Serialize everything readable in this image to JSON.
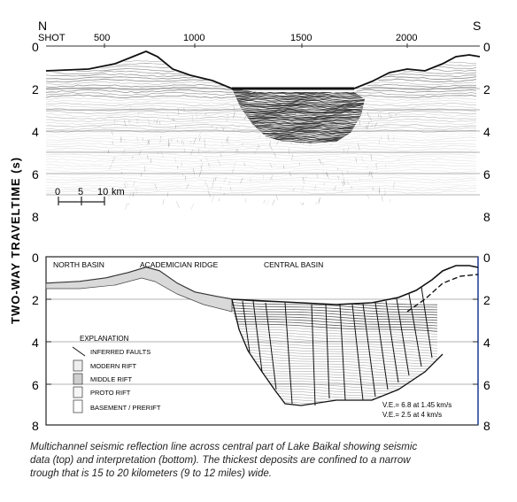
{
  "compass": {
    "north": "N",
    "south": "S"
  },
  "shot": {
    "label": "SHOT",
    "ticks": [
      "500",
      "1000",
      "1500",
      "2000"
    ]
  },
  "y_axis": {
    "label": "TWO-WAY   TRAVELTIME (s)",
    "ticks": [
      "0",
      "2",
      "4",
      "6",
      "8"
    ]
  },
  "scale_bar": {
    "ticks": [
      "0",
      "5",
      "10"
    ],
    "unit": "km"
  },
  "regions": {
    "north_basin": "NORTH BASIN",
    "academician_ridge": "ACADEMICIAN RIDGE",
    "central_basin": "CENTRAL BASIN"
  },
  "legend": {
    "title": "EXPLANATION",
    "items": [
      "INFERRED FAULTS",
      "MODERN RIFT",
      "MIDDLE RIFT",
      "PROTO RIFT",
      "BASEMENT / PRERIFT"
    ]
  },
  "ve": [
    "V.E.= 6.8 at 1.45 km/s",
    "V.E.= 2.5 at 4 km/s"
  ],
  "caption": [
    "Multichannel seismic reflection line across central part of Lake Baikal showing seismic",
    "data (top) and interpretation (bottom).  The thickest deposits are confined to a narrow",
    "trough that is 15 to 20 kilometers (9 to 12 miles) wide."
  ]
}
